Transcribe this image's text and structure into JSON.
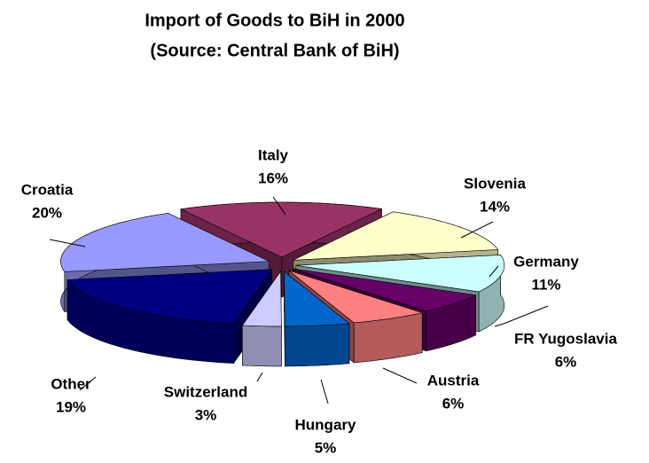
{
  "chart_data": {
    "type": "pie",
    "title": "Import of Goods to BiH in 2000",
    "subtitle": "(Source: Central Bank of BiH)",
    "categories": [
      "Italy",
      "Slovenia",
      "Germany",
      "FR Yugoslavia",
      "Austria",
      "Hungary",
      "Switzerland",
      "Other",
      "Croatia"
    ],
    "values": [
      16,
      14,
      11,
      6,
      6,
      5,
      3,
      19,
      20
    ],
    "value_labels": [
      "16%",
      "14%",
      "11%",
      "6%",
      "6%",
      "5%",
      "3%",
      "19%",
      "20%"
    ],
    "colors": [
      "#993366",
      "#ffffcc",
      "#ccffff",
      "#660066",
      "#ff8080",
      "#0066cc",
      "#ccccff",
      "#000080",
      "#9999ff"
    ]
  }
}
